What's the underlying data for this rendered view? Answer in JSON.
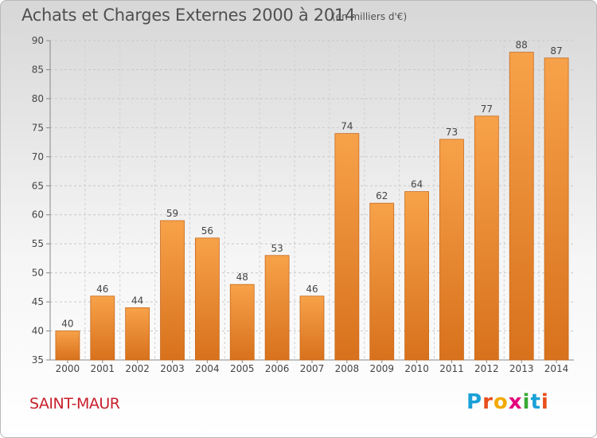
{
  "title": "Achats et Charges Externes 2000 à 2014",
  "subtitle": "(en milliers d'€)",
  "city": "SAINT-MAUR",
  "logo": {
    "letters": [
      "P",
      "r",
      "o",
      "x",
      "i",
      "t",
      "i"
    ],
    "colors": [
      "#1aa0d8",
      "#e84e1b",
      "#f2a900",
      "#e3007a",
      "#39a935",
      "#1aa0d8",
      "#e84e1b"
    ]
  },
  "colors": {
    "bar_light": "#f7a24a",
    "bar_dark": "#d8711c",
    "bar_stroke": "#c9691b",
    "axis_text": "#444444",
    "city": "#c8202d"
  },
  "chart_data": {
    "type": "bar",
    "title": "Achats et Charges Externes 2000 à 2014",
    "subtitle": "(en milliers d'€)",
    "categories": [
      "2000",
      "2001",
      "2002",
      "2003",
      "2004",
      "2005",
      "2006",
      "2007",
      "2008",
      "2009",
      "2010",
      "2011",
      "2012",
      "2013",
      "2014"
    ],
    "values": [
      40,
      46,
      44,
      59,
      56,
      48,
      53,
      46,
      74,
      62,
      64,
      73,
      77,
      88,
      87
    ],
    "ylim": [
      35,
      90
    ],
    "yticks": [
      35,
      40,
      45,
      50,
      55,
      60,
      65,
      70,
      75,
      80,
      85,
      90
    ],
    "grid": true,
    "xlabel": "",
    "ylabel": ""
  }
}
